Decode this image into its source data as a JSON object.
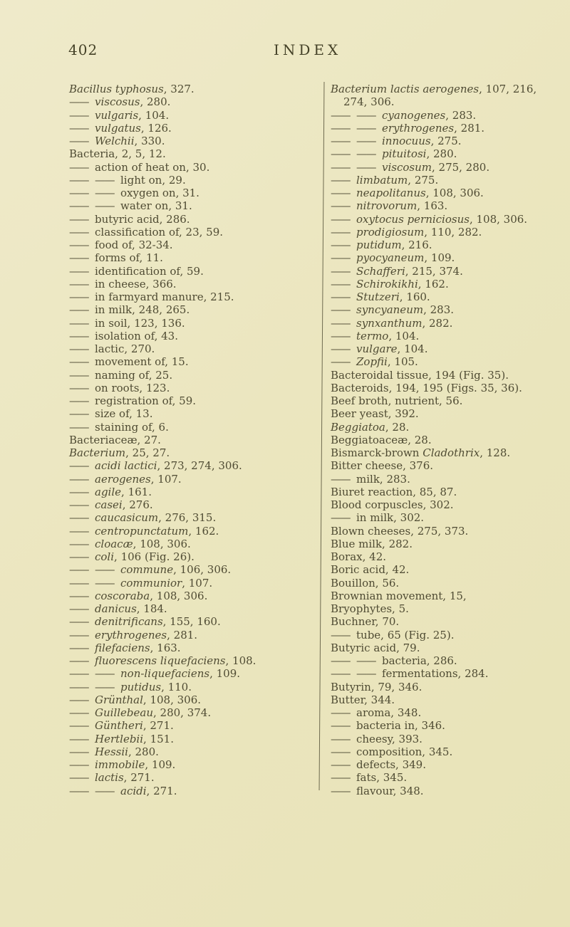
{
  "page": {
    "number": "402",
    "title": "INDEX"
  },
  "columns": {
    "left": [
      {
        "s": [
          [
            1,
            "Bacillus typhosus"
          ],
          [
            0,
            ", 327."
          ]
        ]
      },
      {
        "s": [
          [
            2
          ],
          [
            1,
            "viscosus"
          ],
          [
            0,
            ", 280."
          ]
        ]
      },
      {
        "s": [
          [
            2
          ],
          [
            1,
            "vulgaris"
          ],
          [
            0,
            ", 104."
          ]
        ]
      },
      {
        "s": [
          [
            2
          ],
          [
            1,
            "vulgatus"
          ],
          [
            0,
            ", 126."
          ]
        ]
      },
      {
        "s": [
          [
            2
          ],
          [
            1,
            "Welchii"
          ],
          [
            0,
            ", 330."
          ]
        ]
      },
      {
        "s": [
          [
            0,
            "Bacteria, 2, 5, 12."
          ]
        ]
      },
      {
        "s": [
          [
            2
          ],
          [
            0,
            "action of heat on, 30."
          ]
        ]
      },
      {
        "s": [
          [
            2
          ],
          [
            2
          ],
          [
            0,
            "light on, 29."
          ]
        ]
      },
      {
        "s": [
          [
            2
          ],
          [
            2
          ],
          [
            0,
            "oxygen on, 31."
          ]
        ]
      },
      {
        "s": [
          [
            2
          ],
          [
            2
          ],
          [
            0,
            "water on, 31."
          ]
        ]
      },
      {
        "s": [
          [
            2
          ],
          [
            0,
            "butyric acid, 286."
          ]
        ]
      },
      {
        "s": [
          [
            2
          ],
          [
            0,
            "classification of, 23, 59."
          ]
        ]
      },
      {
        "s": [
          [
            2
          ],
          [
            0,
            "food of, 32-34."
          ]
        ]
      },
      {
        "s": [
          [
            2
          ],
          [
            0,
            "forms of, 11."
          ]
        ]
      },
      {
        "s": [
          [
            2
          ],
          [
            0,
            "identification of, 59."
          ]
        ]
      },
      {
        "s": [
          [
            2
          ],
          [
            0,
            "in cheese, 366."
          ]
        ]
      },
      {
        "s": [
          [
            2
          ],
          [
            0,
            "in farmyard manure, 215."
          ]
        ]
      },
      {
        "s": [
          [
            2
          ],
          [
            0,
            "in milk, 248, 265."
          ]
        ]
      },
      {
        "s": [
          [
            2
          ],
          [
            0,
            "in soil, 123, 136."
          ]
        ]
      },
      {
        "s": [
          [
            2
          ],
          [
            0,
            "isolation of, 43."
          ]
        ]
      },
      {
        "s": [
          [
            2
          ],
          [
            0,
            "lactic, 270."
          ]
        ]
      },
      {
        "s": [
          [
            2
          ],
          [
            0,
            "movement of, 15."
          ]
        ]
      },
      {
        "s": [
          [
            2
          ],
          [
            0,
            "naming of, 25."
          ]
        ]
      },
      {
        "s": [
          [
            2
          ],
          [
            0,
            "on roots, 123."
          ]
        ]
      },
      {
        "s": [
          [
            2
          ],
          [
            0,
            "registration of, 59."
          ]
        ]
      },
      {
        "s": [
          [
            2
          ],
          [
            0,
            "size of, 13."
          ]
        ]
      },
      {
        "s": [
          [
            2
          ],
          [
            0,
            "staining of, 6."
          ]
        ]
      },
      {
        "s": [
          [
            0,
            "Bacteriaceæ, 27."
          ]
        ]
      },
      {
        "s": [
          [
            1,
            "Bacterium"
          ],
          [
            0,
            ", 25, 27."
          ]
        ]
      },
      {
        "s": [
          [
            2
          ],
          [
            1,
            "acidi lactici"
          ],
          [
            0,
            ", 273, 274, 306."
          ]
        ]
      },
      {
        "s": [
          [
            2
          ],
          [
            1,
            "aerogenes"
          ],
          [
            0,
            ", 107."
          ]
        ]
      },
      {
        "s": [
          [
            2
          ],
          [
            1,
            "agile"
          ],
          [
            0,
            ", 161."
          ]
        ]
      },
      {
        "s": [
          [
            2
          ],
          [
            1,
            "casei"
          ],
          [
            0,
            ", 276."
          ]
        ]
      },
      {
        "s": [
          [
            2
          ],
          [
            1,
            "caucasicum"
          ],
          [
            0,
            ", 276, 315."
          ]
        ]
      },
      {
        "s": [
          [
            2
          ],
          [
            1,
            "centropunctatum"
          ],
          [
            0,
            ", 162."
          ]
        ]
      },
      {
        "s": [
          [
            2
          ],
          [
            1,
            "cloacæ"
          ],
          [
            0,
            ", 108, 306."
          ]
        ]
      },
      {
        "s": [
          [
            2
          ],
          [
            1,
            "coli"
          ],
          [
            0,
            ", 106 (Fig. 26)."
          ]
        ]
      },
      {
        "s": [
          [
            2
          ],
          [
            2
          ],
          [
            1,
            "commune"
          ],
          [
            0,
            ", 106, 306."
          ]
        ]
      },
      {
        "s": [
          [
            2
          ],
          [
            2
          ],
          [
            1,
            "communior"
          ],
          [
            0,
            ", 107."
          ]
        ]
      },
      {
        "s": [
          [
            2
          ],
          [
            1,
            "coscoraba"
          ],
          [
            0,
            ", 108, 306."
          ]
        ]
      },
      {
        "s": [
          [
            2
          ],
          [
            1,
            "danicus"
          ],
          [
            0,
            ", 184."
          ]
        ]
      },
      {
        "s": [
          [
            2
          ],
          [
            1,
            "denitrificans"
          ],
          [
            0,
            ", 155, 160."
          ]
        ]
      },
      {
        "s": [
          [
            2
          ],
          [
            1,
            "erythrogenes"
          ],
          [
            0,
            ", 281."
          ]
        ]
      },
      {
        "s": [
          [
            2
          ],
          [
            1,
            "filefaciens"
          ],
          [
            0,
            ", 163."
          ]
        ]
      },
      {
        "s": [
          [
            2
          ],
          [
            1,
            "fluorescens liquefaciens"
          ],
          [
            0,
            ", 108."
          ]
        ]
      },
      {
        "s": [
          [
            2
          ],
          [
            2
          ],
          [
            1,
            "non-liquefaciens"
          ],
          [
            0,
            ", 109."
          ]
        ]
      },
      {
        "s": [
          [
            2
          ],
          [
            2
          ],
          [
            1,
            "putidus"
          ],
          [
            0,
            ", 110."
          ]
        ]
      },
      {
        "s": [
          [
            2
          ],
          [
            1,
            "Grünthal"
          ],
          [
            0,
            ", 108, 306."
          ]
        ]
      },
      {
        "s": [
          [
            2
          ],
          [
            1,
            "Guillebeau"
          ],
          [
            0,
            ", 280, 374."
          ]
        ]
      },
      {
        "s": [
          [
            2
          ],
          [
            1,
            "Güntheri"
          ],
          [
            0,
            ", 271."
          ]
        ]
      },
      {
        "s": [
          [
            2
          ],
          [
            1,
            "Hertlebii"
          ],
          [
            0,
            ", 151."
          ]
        ]
      },
      {
        "s": [
          [
            2
          ],
          [
            1,
            "Hessii"
          ],
          [
            0,
            ", 280."
          ]
        ]
      },
      {
        "s": [
          [
            2
          ],
          [
            1,
            "immobile"
          ],
          [
            0,
            ", 109."
          ]
        ]
      },
      {
        "s": [
          [
            2
          ],
          [
            1,
            "lactis"
          ],
          [
            0,
            ", 271."
          ]
        ]
      },
      {
        "s": [
          [
            2
          ],
          [
            2
          ],
          [
            1,
            "acidi"
          ],
          [
            0,
            ", 271."
          ]
        ]
      }
    ],
    "right": [
      {
        "s": [
          [
            1,
            "Bacterium lactis aerogenes"
          ],
          [
            0,
            ", 107, 216,"
          ]
        ]
      },
      {
        "ind": 1,
        "s": [
          [
            0,
            "274, 306."
          ]
        ]
      },
      {
        "s": [
          [
            2
          ],
          [
            2
          ],
          [
            1,
            "cyanogenes"
          ],
          [
            0,
            ", 283."
          ]
        ]
      },
      {
        "s": [
          [
            2
          ],
          [
            2
          ],
          [
            1,
            "erythrogenes"
          ],
          [
            0,
            ", 281."
          ]
        ]
      },
      {
        "s": [
          [
            2
          ],
          [
            2
          ],
          [
            1,
            "innocuus"
          ],
          [
            0,
            ", 275."
          ]
        ]
      },
      {
        "s": [
          [
            2
          ],
          [
            2
          ],
          [
            1,
            "pituitosi"
          ],
          [
            0,
            ", 280."
          ]
        ]
      },
      {
        "s": [
          [
            2
          ],
          [
            2
          ],
          [
            1,
            "viscosum"
          ],
          [
            0,
            ", 275, 280."
          ]
        ]
      },
      {
        "s": [
          [
            2
          ],
          [
            1,
            "limbatum"
          ],
          [
            0,
            ", 275."
          ]
        ]
      },
      {
        "s": [
          [
            2
          ],
          [
            1,
            "neapolitanus"
          ],
          [
            0,
            ", 108, 306."
          ]
        ]
      },
      {
        "s": [
          [
            2
          ],
          [
            1,
            "nitrovorum"
          ],
          [
            0,
            ", 163."
          ]
        ]
      },
      {
        "s": [
          [
            2
          ],
          [
            1,
            "oxytocus perniciosus"
          ],
          [
            0,
            ", 108, 306."
          ]
        ]
      },
      {
        "s": [
          [
            2
          ],
          [
            1,
            "prodigiosum"
          ],
          [
            0,
            ", 110, 282."
          ]
        ]
      },
      {
        "s": [
          [
            2
          ],
          [
            1,
            "putidum"
          ],
          [
            0,
            ", 216."
          ]
        ]
      },
      {
        "s": [
          [
            2
          ],
          [
            1,
            "pyocyaneum"
          ],
          [
            0,
            ", 109."
          ]
        ]
      },
      {
        "s": [
          [
            2
          ],
          [
            1,
            "Schafferi"
          ],
          [
            0,
            ", 215, 374."
          ]
        ]
      },
      {
        "s": [
          [
            2
          ],
          [
            1,
            "Schirokikhi"
          ],
          [
            0,
            ", 162."
          ]
        ]
      },
      {
        "s": [
          [
            2
          ],
          [
            1,
            "Stutzeri"
          ],
          [
            0,
            ", 160."
          ]
        ]
      },
      {
        "s": [
          [
            2
          ],
          [
            1,
            "syncyaneum"
          ],
          [
            0,
            ", 283."
          ]
        ]
      },
      {
        "s": [
          [
            2
          ],
          [
            1,
            "synxanthum"
          ],
          [
            0,
            ", 282."
          ]
        ]
      },
      {
        "s": [
          [
            2
          ],
          [
            1,
            "termo"
          ],
          [
            0,
            ", 104."
          ]
        ]
      },
      {
        "s": [
          [
            2
          ],
          [
            1,
            "vulgare"
          ],
          [
            0,
            ", 104."
          ]
        ]
      },
      {
        "s": [
          [
            2
          ],
          [
            1,
            "Zopfii"
          ],
          [
            0,
            ", 105."
          ]
        ]
      },
      {
        "s": [
          [
            0,
            "Bacteroidal tissue, 194 (Fig. 35)."
          ]
        ]
      },
      {
        "s": [
          [
            0,
            "Bacteroids, 194, 195 (Figs. 35, 36)."
          ]
        ]
      },
      {
        "s": [
          [
            0,
            "Beef broth, nutrient, 56."
          ]
        ]
      },
      {
        "s": [
          [
            0,
            "Beer yeast, 392."
          ]
        ]
      },
      {
        "s": [
          [
            1,
            "Beggiatoa"
          ],
          [
            0,
            ", 28."
          ]
        ]
      },
      {
        "s": [
          [
            0,
            "Beggiatoaceæ, 28."
          ]
        ]
      },
      {
        "s": [
          [
            0,
            "Bismarck-brown "
          ],
          [
            1,
            "Cladothrix"
          ],
          [
            0,
            ", 128."
          ]
        ]
      },
      {
        "s": [
          [
            0,
            "Bitter cheese, 376."
          ]
        ]
      },
      {
        "s": [
          [
            2
          ],
          [
            0,
            "milk, 283."
          ]
        ]
      },
      {
        "s": [
          [
            0,
            "Biuret reaction, 85, 87."
          ]
        ]
      },
      {
        "s": [
          [
            0,
            "Blood corpuscles, 302."
          ]
        ]
      },
      {
        "s": [
          [
            2
          ],
          [
            0,
            "in milk, 302."
          ]
        ]
      },
      {
        "s": [
          [
            0,
            "Blown cheeses, 275, 373."
          ]
        ]
      },
      {
        "s": [
          [
            0,
            "Blue milk, 282."
          ]
        ]
      },
      {
        "s": [
          [
            0,
            "Borax, 42."
          ]
        ]
      },
      {
        "s": [
          [
            0,
            "Boric acid, 42."
          ]
        ]
      },
      {
        "s": [
          [
            0,
            "Bouillon, 56."
          ]
        ]
      },
      {
        "s": [
          [
            0,
            "Brownian movement, 15,"
          ]
        ]
      },
      {
        "s": [
          [
            0,
            "Bryophytes, 5."
          ]
        ]
      },
      {
        "s": [
          [
            0,
            "Buchner, 70."
          ]
        ]
      },
      {
        "s": [
          [
            2
          ],
          [
            0,
            "tube, 65 (Fig. 25)."
          ]
        ]
      },
      {
        "s": [
          [
            0,
            "Butyric acid, 79."
          ]
        ]
      },
      {
        "s": [
          [
            2
          ],
          [
            2
          ],
          [
            0,
            "bacteria, 286."
          ]
        ]
      },
      {
        "s": [
          [
            2
          ],
          [
            2
          ],
          [
            0,
            "fermentations, 284."
          ]
        ]
      },
      {
        "s": [
          [
            0,
            "Butyrin, 79, 346."
          ]
        ]
      },
      {
        "s": [
          [
            0,
            "Butter, 344."
          ]
        ]
      },
      {
        "s": [
          [
            2
          ],
          [
            0,
            "aroma, 348."
          ]
        ]
      },
      {
        "s": [
          [
            2
          ],
          [
            0,
            "bacteria in, 346."
          ]
        ]
      },
      {
        "s": [
          [
            2
          ],
          [
            0,
            "cheesy, 393."
          ]
        ]
      },
      {
        "s": [
          [
            2
          ],
          [
            0,
            "composition, 345."
          ]
        ]
      },
      {
        "s": [
          [
            2
          ],
          [
            0,
            "defects, 349."
          ]
        ]
      },
      {
        "s": [
          [
            2
          ],
          [
            0,
            "fats, 345."
          ]
        ]
      },
      {
        "s": [
          [
            2
          ],
          [
            0,
            "flavour, 348."
          ]
        ]
      }
    ]
  }
}
